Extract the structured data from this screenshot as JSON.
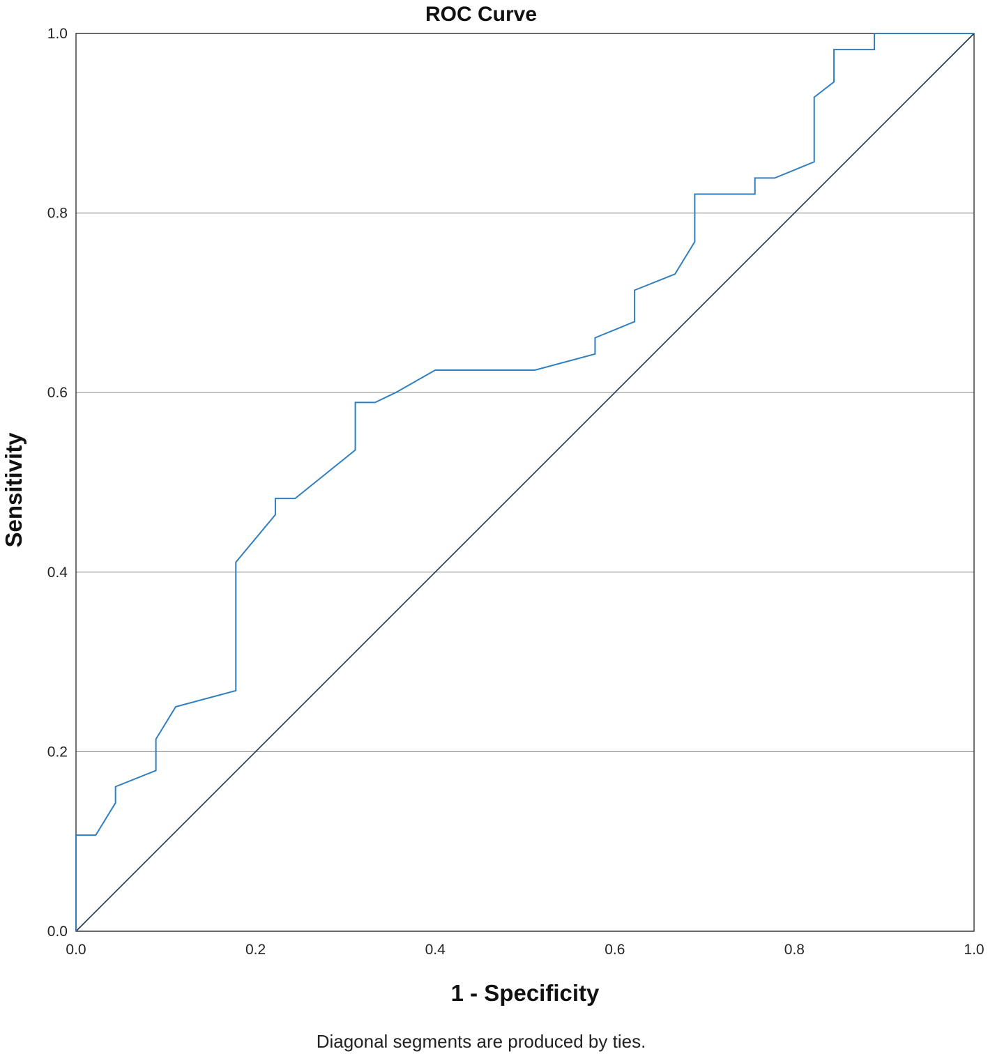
{
  "chart_data": {
    "type": "line",
    "title": "ROC Curve",
    "xlabel": "1 - Specificity",
    "ylabel": "Sensitivity",
    "footnote": "Diagonal segments are produced by ties.",
    "xlim": [
      0,
      1
    ],
    "ylim": [
      0,
      1
    ],
    "xticks": [
      "0.0",
      "0.2",
      "0.4",
      "0.6",
      "0.8",
      "1.0"
    ],
    "yticks": [
      "0.0",
      "0.2",
      "0.4",
      "0.6",
      "0.8",
      "1.0"
    ],
    "grid": "horizontal",
    "colors": {
      "roc": "#2f7fc0",
      "reference": "#1f3350"
    },
    "series": [
      {
        "x": [
          0,
          0,
          0.022,
          0.044,
          0.044,
          0.089,
          0.089,
          0.111,
          0.178,
          0.178,
          0.222,
          0.222,
          0.244,
          0.311,
          0.311,
          0.333,
          0.356,
          0.4,
          0.511,
          0.578,
          0.578,
          0.622,
          0.622,
          0.667,
          0.689,
          0.689,
          0.756,
          0.756,
          0.778,
          0.822,
          0.822,
          0.844,
          0.844,
          0.889,
          0.889,
          1.0
        ],
        "y": [
          0,
          0.107,
          0.107,
          0.143,
          0.161,
          0.179,
          0.214,
          0.25,
          0.268,
          0.411,
          0.464,
          0.482,
          0.482,
          0.536,
          0.589,
          0.589,
          0.6,
          0.625,
          0.625,
          0.643,
          0.661,
          0.679,
          0.714,
          0.732,
          0.768,
          0.821,
          0.821,
          0.839,
          0.839,
          0.857,
          0.929,
          0.946,
          0.982,
          0.982,
          1.0,
          1.0
        ]
      },
      {
        "x": [
          0,
          1
        ],
        "y": [
          0,
          1
        ]
      }
    ]
  }
}
